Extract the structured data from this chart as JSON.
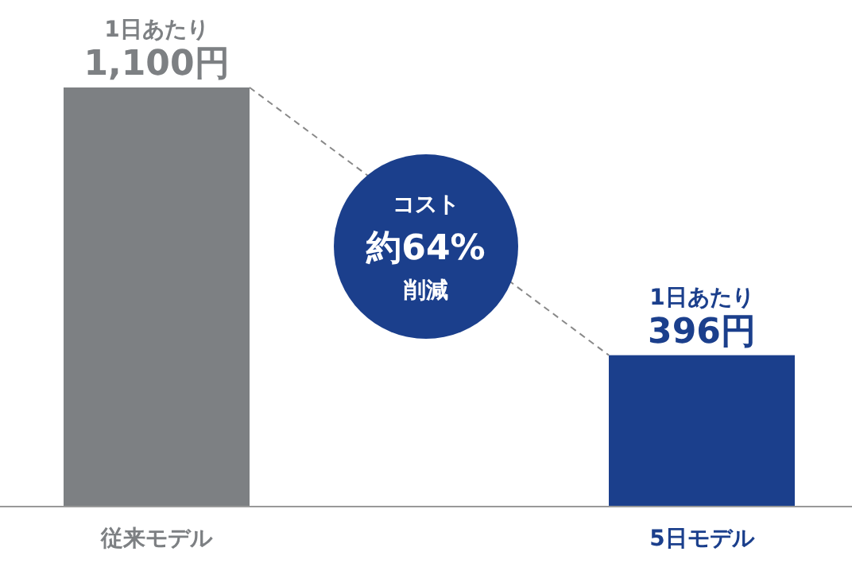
{
  "chart_data": {
    "type": "bar",
    "categories": [
      "従来モデル",
      "5日モデル"
    ],
    "values": [
      1100,
      396
    ],
    "colors": [
      "#7d8083",
      "#1b3f8c"
    ],
    "value_labels": [
      "1日あたり\n1,100円",
      "1日あたり\n396円"
    ],
    "annotations": [
      "コスト",
      "約64%",
      "削減"
    ]
  }
}
